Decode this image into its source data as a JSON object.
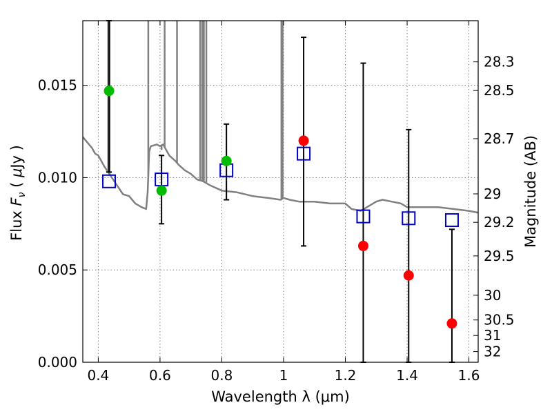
{
  "chart_data": {
    "type": "scatter",
    "xlabel": "Wavelength  λ (μm)",
    "ylabel": "Flux  F_ν  ( μJy )",
    "ylabel_parts": {
      "pre": "Flux  ",
      "fvar": "F",
      "fsub": "ν",
      "post": "  ( ",
      "mu": "μ",
      "unit": "Jy )"
    },
    "y2label": "Magnitude (AB)",
    "xlim": [
      0.35,
      1.63
    ],
    "ylim": [
      0.0,
      0.0185
    ],
    "grid": true,
    "x_ticks": [
      0.4,
      0.6,
      0.8,
      1.0,
      1.2,
      1.4,
      1.6
    ],
    "x_tick_labels": [
      "0.4",
      "0.6",
      "0.8",
      "1",
      "1.2",
      "1.4",
      "1.6"
    ],
    "y_ticks": [
      0.0,
      0.005,
      0.01,
      0.015
    ],
    "y_tick_labels": [
      "0.000",
      "0.005",
      "0.010",
      "0.015"
    ],
    "mag_ticks": [
      {
        "label": "28.3",
        "flux": 0.01627
      },
      {
        "label": "28.5",
        "flux": 0.01472
      },
      {
        "label": "28.7",
        "flux": 0.01211
      },
      {
        "label": "29",
        "flux": 0.00912
      },
      {
        "label": "29.2",
        "flux": 0.00758
      },
      {
        "label": "29.5",
        "flux": 0.00576
      },
      {
        "label": "30",
        "flux": 0.00363
      },
      {
        "label": "30.5",
        "flux": 0.00229
      },
      {
        "label": "31",
        "flux": 0.00145
      },
      {
        "label": "32",
        "flux": 0.000575
      }
    ],
    "colors": {
      "template": "#808080",
      "model": "#0000cc",
      "green": "#00bb00",
      "red": "#ff0000",
      "errorbar": "#000000",
      "grid": "#808080"
    },
    "template_spectrum": {
      "x": [
        0.35,
        0.37,
        0.38,
        0.39,
        0.4,
        0.42,
        0.44,
        0.46,
        0.48,
        0.5,
        0.52,
        0.54,
        0.555,
        0.56,
        0.565,
        0.57,
        0.59,
        0.6,
        0.61,
        0.63,
        0.65,
        0.66,
        0.68,
        0.7,
        0.72,
        0.74,
        0.76,
        0.8,
        0.85,
        0.9,
        0.95,
        0.99,
        1.0,
        1.02,
        1.05,
        1.1,
        1.15,
        1.2,
        1.22,
        1.25,
        1.28,
        1.3,
        1.32,
        1.35,
        1.38,
        1.4,
        1.45,
        1.5,
        1.55,
        1.6,
        1.63
      ],
      "y": [
        0.0122,
        0.0118,
        0.0116,
        0.0113,
        0.0112,
        0.0106,
        0.0101,
        0.0096,
        0.0091,
        0.009,
        0.0086,
        0.0084,
        0.0083,
        0.0092,
        0.0114,
        0.0117,
        0.0118,
        0.0117,
        0.0118,
        0.0112,
        0.0109,
        0.0107,
        0.0104,
        0.0102,
        0.0099,
        0.0098,
        0.0096,
        0.0093,
        0.0092,
        0.009,
        0.0089,
        0.0088,
        0.0089,
        0.0088,
        0.0087,
        0.0087,
        0.0086,
        0.0086,
        0.0083,
        0.0082,
        0.0085,
        0.0087,
        0.0088,
        0.0087,
        0.0086,
        0.0084,
        0.0084,
        0.0084,
        0.0083,
        0.0082,
        0.0081
      ]
    },
    "emission_lines": [
      {
        "x": 0.432,
        "y": 0.0185
      },
      {
        "x": 0.437,
        "y": 0.0185
      },
      {
        "x": 0.562,
        "y": 0.0185
      },
      {
        "x": 0.605,
        "y": 0.0115
      },
      {
        "x": 0.615,
        "y": 0.0185
      },
      {
        "x": 0.655,
        "y": 0.0185
      },
      {
        "x": 0.73,
        "y": 0.0185
      },
      {
        "x": 0.737,
        "y": 0.0185
      },
      {
        "x": 0.742,
        "y": 0.0185
      },
      {
        "x": 0.75,
        "y": 0.0185
      },
      {
        "x": 0.993,
        "y": 0.0185
      },
      {
        "x": 0.997,
        "y": 0.0185
      }
    ],
    "series": [
      {
        "marker": "square",
        "x": [
          0.435,
          0.605,
          0.815,
          1.065,
          1.258,
          1.405,
          1.545
        ],
        "y": [
          0.0098,
          0.0099,
          0.0104,
          0.0113,
          0.0079,
          0.0078,
          0.0077
        ]
      },
      {
        "marker": "circle-green",
        "x": [
          0.435,
          0.605,
          0.815
        ],
        "y": [
          0.0147,
          0.0093,
          0.0109
        ],
        "err_low": [
          0.0103,
          0.0075,
          0.0088
        ],
        "err_high": [
          0.0185,
          0.0112,
          0.0129
        ]
      },
      {
        "marker": "circle-red",
        "x": [
          1.065,
          1.258,
          1.405,
          1.545
        ],
        "y": [
          0.012,
          0.0063,
          0.0047,
          0.0021
        ],
        "err_low": [
          0.0063,
          0.0,
          0.0,
          0.0
        ],
        "err_high": [
          0.0176,
          0.0162,
          0.0126,
          0.0072
        ]
      }
    ]
  }
}
